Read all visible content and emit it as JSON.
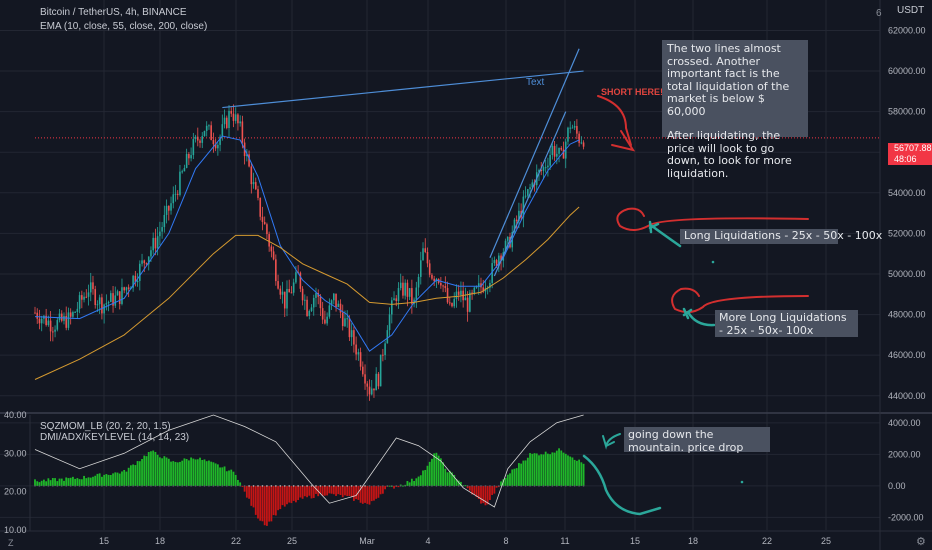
{
  "header": {
    "symbol_line": "Bitcoin / TetherUS, 4h, BINANCE",
    "indicator_line": "EMA (10, close, 55, close, 200, close)",
    "lower_line1": "SQZMOM_LB (20, 2, 20, 1.5)",
    "lower_line2": "DMI/ADX/KEYLEVEL (14, 14, 23)",
    "currency": "USDT",
    "currency_digit": "6",
    "corner_z": "Z",
    "corner_gear": "⚙"
  },
  "colors": {
    "background": "#131722",
    "grid": "#232733",
    "up": "#26a69a",
    "down": "#ef5350",
    "ema_fast": "#3179f5",
    "ema_slow": "#d59a30",
    "trendline": "#4e8ed8",
    "annotation_red": "#d32f2f",
    "annotation_teal": "#2ba79a",
    "hist_green": "#1fb829",
    "hist_red": "#c51515",
    "note_bg": "#4a5160"
  },
  "price_tag": {
    "value": "56707.88",
    "countdown": "48:06"
  },
  "drawing_text": "Text",
  "short_label": "SHORT HERE!!",
  "notes": {
    "main_p1": "The two lines almost crossed. Another important fact is the total liquidation of the market is below $ 60,000",
    "main_p2": "After liquidating, the price will look to go down, to look for more liquidation.",
    "long1": "Long Liquidations - 25x - 50x - 100x",
    "long2": "More Long Liquidations - 25x - 50x- 100x",
    "lower": "going down the mountain. price drop"
  },
  "chart_data": [
    {
      "type": "candlestick",
      "title": "Bitcoin / TetherUS, 4h, BINANCE",
      "ylabel": "USDT",
      "ylim": [
        43200,
        63500
      ],
      "y_ticks": [
        "44000.00",
        "46000.00",
        "48000.00",
        "50000.00",
        "52000.00",
        "54000.00",
        "56000.00",
        "58000.00",
        "60000.00",
        "62000.00"
      ],
      "x_ticks": [
        "15",
        "18",
        "22",
        "25",
        "Mar",
        "4",
        "8",
        "11",
        "15",
        "18",
        "22",
        "25"
      ],
      "current_price": 56707.88,
      "close_path": [
        [
          0,
          48100
        ],
        [
          8,
          47500
        ],
        [
          16,
          47800
        ],
        [
          24,
          49300
        ],
        [
          30,
          48500
        ],
        [
          38,
          48900
        ],
        [
          46,
          50100
        ],
        [
          54,
          51600
        ],
        [
          62,
          53700
        ],
        [
          70,
          56100
        ],
        [
          76,
          57200
        ],
        [
          82,
          56500
        ],
        [
          88,
          58100
        ],
        [
          92,
          57100
        ],
        [
          96,
          55200
        ],
        [
          100,
          53400
        ],
        [
          104,
          52000
        ],
        [
          108,
          50100
        ],
        [
          112,
          48600
        ],
        [
          118,
          49900
        ],
        [
          122,
          48300
        ],
        [
          126,
          49100
        ],
        [
          130,
          47600
        ],
        [
          134,
          48800
        ],
        [
          140,
          47400
        ],
        [
          146,
          45800
        ],
        [
          150,
          44300
        ],
        [
          154,
          44900
        ],
        [
          158,
          47600
        ],
        [
          162,
          49000
        ],
        [
          166,
          49300
        ],
        [
          170,
          48500
        ],
        [
          174,
          51100
        ],
        [
          178,
          50000
        ],
        [
          182,
          49800
        ],
        [
          186,
          48200
        ],
        [
          190,
          49100
        ],
        [
          194,
          48500
        ],
        [
          198,
          49100
        ],
        [
          204,
          49900
        ],
        [
          208,
          51000
        ],
        [
          212,
          51400
        ],
        [
          216,
          52600
        ],
        [
          220,
          53700
        ],
        [
          224,
          54700
        ],
        [
          228,
          55200
        ],
        [
          232,
          56200
        ],
        [
          236,
          55700
        ],
        [
          240,
          57400
        ],
        [
          244,
          56700
        ]
      ],
      "series": [
        {
          "name": "EMA 10",
          "values": [
            [
              0,
              47900
            ],
            [
              20,
              47800
            ],
            [
              40,
              48800
            ],
            [
              60,
              52000
            ],
            [
              72,
              55200
            ],
            [
              84,
              56800
            ],
            [
              92,
              56600
            ],
            [
              100,
              54800
            ],
            [
              110,
              51400
            ],
            [
              120,
              49700
            ],
            [
              130,
              48700
            ],
            [
              140,
              48000
            ],
            [
              150,
              46200
            ],
            [
              160,
              47000
            ],
            [
              170,
              48600
            ],
            [
              180,
              49700
            ],
            [
              190,
              49400
            ],
            [
              200,
              49400
            ],
            [
              210,
              50800
            ],
            [
              220,
              53100
            ],
            [
              230,
              55100
            ],
            [
              240,
              56400
            ],
            [
              244,
              56600
            ]
          ]
        },
        {
          "name": "EMA 55",
          "values": [
            [
              0,
              44800
            ],
            [
              20,
              45800
            ],
            [
              40,
              47000
            ],
            [
              60,
              48800
            ],
            [
              80,
              51000
            ],
            [
              90,
              51900
            ],
            [
              100,
              51900
            ],
            [
              110,
              51300
            ],
            [
              120,
              50500
            ],
            [
              130,
              50000
            ],
            [
              140,
              49500
            ],
            [
              150,
              48600
            ],
            [
              160,
              48500
            ],
            [
              170,
              48600
            ],
            [
              180,
              48800
            ],
            [
              190,
              48900
            ],
            [
              200,
              49100
            ],
            [
              210,
              49800
            ],
            [
              220,
              50700
            ],
            [
              230,
              51700
            ],
            [
              240,
              52900
            ],
            [
              244,
              53300
            ]
          ]
        }
      ],
      "trendlines": [
        {
          "label": "",
          "from": [
            84,
            58200
          ],
          "to": [
            246,
            60000
          ]
        },
        {
          "label": "Text",
          "from": [
            204,
            50800
          ],
          "to": [
            244,
            61100
          ]
        }
      ]
    },
    {
      "type": "bar",
      "title": "SQZMOM_LB (20, 2, 20, 1.5)",
      "ylim_left": [
        10,
        40
      ],
      "ylim_right": [
        -2800,
        4500
      ],
      "left_ticks": [
        "10.00",
        "20.00",
        "30.00",
        "40.00"
      ],
      "right_ticks": [
        "-2000.00",
        "0.00",
        "2000.00",
        "4000.00"
      ],
      "momentum_path": [
        [
          0,
          300
        ],
        [
          20,
          500
        ],
        [
          40,
          900
        ],
        [
          52,
          2200
        ],
        [
          62,
          1500
        ],
        [
          72,
          1800
        ],
        [
          82,
          1300
        ],
        [
          90,
          800
        ],
        [
          94,
          -400
        ],
        [
          100,
          -2000
        ],
        [
          104,
          -2500
        ],
        [
          110,
          -1400
        ],
        [
          120,
          -800
        ],
        [
          130,
          -500
        ],
        [
          140,
          -700
        ],
        [
          150,
          -1200
        ],
        [
          158,
          -100
        ],
        [
          162,
          -50
        ],
        [
          170,
          400
        ],
        [
          176,
          1200
        ],
        [
          180,
          2200
        ],
        [
          184,
          1100
        ],
        [
          190,
          400
        ],
        [
          194,
          -200
        ],
        [
          202,
          -1300
        ],
        [
          208,
          0
        ],
        [
          212,
          700
        ],
        [
          222,
          2000
        ],
        [
          230,
          2100
        ],
        [
          236,
          2300
        ],
        [
          246,
          1400
        ]
      ],
      "adx_path": [
        [
          0,
          31
        ],
        [
          20,
          26
        ],
        [
          40,
          30
        ],
        [
          60,
          36
        ],
        [
          80,
          40
        ],
        [
          94,
          37
        ],
        [
          108,
          33
        ],
        [
          124,
          22
        ],
        [
          132,
          17
        ],
        [
          144,
          19
        ],
        [
          156,
          29
        ],
        [
          162,
          34
        ],
        [
          172,
          32
        ],
        [
          182,
          28
        ],
        [
          192,
          21
        ],
        [
          206,
          16
        ],
        [
          212,
          26
        ],
        [
          222,
          33
        ],
        [
          234,
          38
        ],
        [
          246,
          40
        ]
      ]
    }
  ]
}
